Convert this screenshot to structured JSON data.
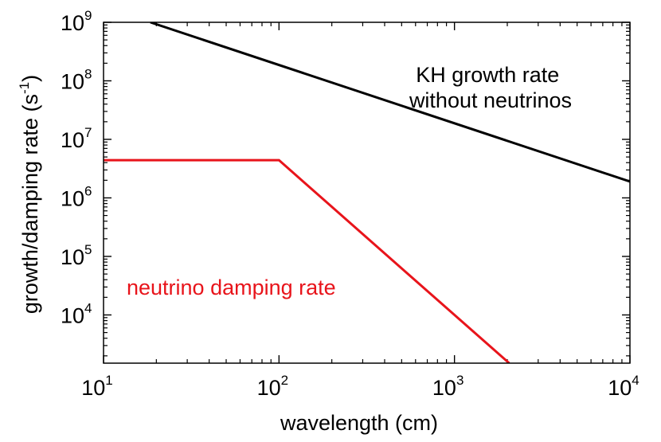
{
  "chart_data": {
    "type": "line",
    "xlabel": "wavelength (cm)",
    "ylabel": {
      "prefix": "growth/damping rate (s",
      "superscript": "-1",
      "suffix": ")"
    },
    "xscale": "log",
    "yscale": "log",
    "xlim": [
      10,
      10000
    ],
    "ylim": [
      1500,
      1000000000
    ],
    "grid": false,
    "x_ticks": [
      {
        "base": "10",
        "exp": "1",
        "value": 10
      },
      {
        "base": "10",
        "exp": "2",
        "value": 100
      },
      {
        "base": "10",
        "exp": "3",
        "value": 1000
      },
      {
        "base": "10",
        "exp": "4",
        "value": 10000
      }
    ],
    "y_ticks": [
      {
        "base": "10",
        "exp": "4",
        "value": 10000
      },
      {
        "base": "10",
        "exp": "5",
        "value": 100000
      },
      {
        "base": "10",
        "exp": "6",
        "value": 1000000
      },
      {
        "base": "10",
        "exp": "7",
        "value": 10000000
      },
      {
        "base": "10",
        "exp": "8",
        "value": 100000000
      },
      {
        "base": "10",
        "exp": "9",
        "value": 1000000000
      }
    ],
    "series": [
      {
        "color": "#000000",
        "x": [
          18.5,
          10000
        ],
        "y": [
          1000000000,
          1900000
        ]
      },
      {
        "color": "#e8141b",
        "x": [
          10,
          100,
          2050
        ],
        "y": [
          4400000,
          4400000,
          1500
        ]
      }
    ],
    "annotations": [
      {
        "id": "kh",
        "lines": [
          "KH growth rate",
          "without neutrinos"
        ],
        "color": "#000000"
      },
      {
        "id": "nu",
        "lines": [
          "neutrino damping rate"
        ],
        "color": "#e8141b"
      }
    ]
  }
}
